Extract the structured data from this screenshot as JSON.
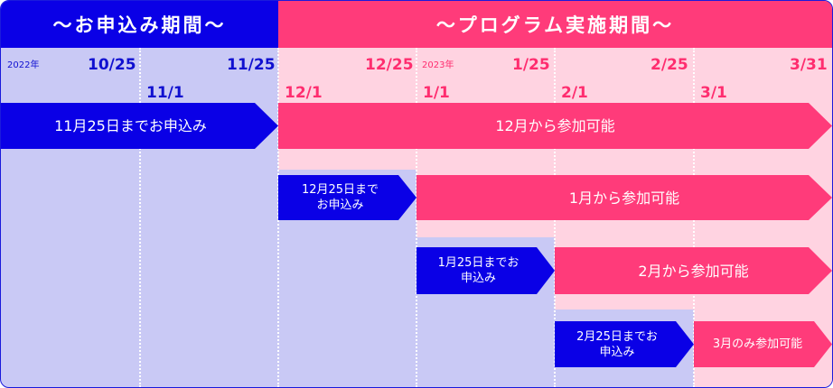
{
  "headers": {
    "apply_period": "～お申込み期間～",
    "program_period": "～プログラム実施期間～"
  },
  "years": {
    "y2022": "2022年",
    "y2023": "2023年"
  },
  "dates": {
    "d1025": "10/25",
    "d1125": "11/25",
    "d1225": "12/25",
    "d0125": "1/25",
    "d0225": "2/25",
    "d0331": "3/31",
    "d1101": "11/1",
    "d1201": "12/1",
    "d0101": "1/1",
    "d0201": "2/1",
    "d0301": "3/1"
  },
  "arrows": {
    "apply_nov": "11月25日までお申込み",
    "join_dec": "12月から参加可能",
    "apply_dec": "12月25日までお申込み",
    "join_jan": "1月から参加可能",
    "apply_jan": "1月25日までお申込み",
    "join_feb": "2月から参加可能",
    "apply_feb": "2月25日までお申込み",
    "join_mar": "3月のみ参加可能"
  },
  "colors": {
    "apply_blue": "#0a00e6",
    "program_pink": "#ff3b7a",
    "apply_bg": "#c9c9f5",
    "program_bg": "#ffd3e1"
  }
}
